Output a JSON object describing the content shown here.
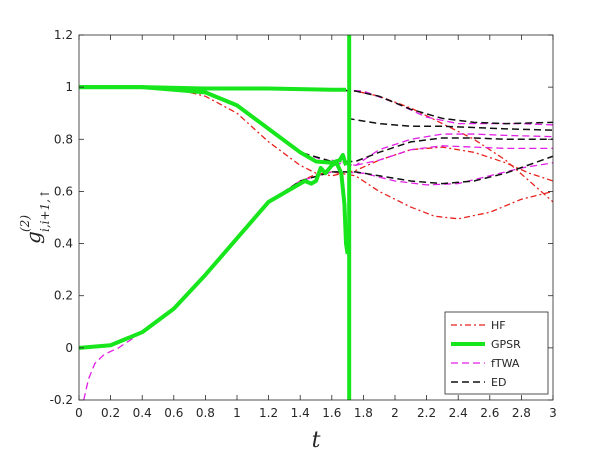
{
  "chart_data": {
    "type": "line",
    "title": "",
    "xlabel": "t",
    "ylabel_main": "g",
    "ylabel_sup": "(2)",
    "ylabel_sub": "i,i+1,↑",
    "xlim": [
      0,
      3
    ],
    "ylim": [
      -0.2,
      1.2
    ],
    "xticks": [
      0,
      0.2,
      0.4,
      0.6,
      0.8,
      1,
      1.2,
      1.4,
      1.6,
      1.8,
      2,
      2.2,
      2.4,
      2.6,
      2.8,
      3
    ],
    "xtick_labels": [
      "0",
      "0.2",
      "0.4",
      "0.6",
      "0.8",
      "1",
      "1.2",
      "1.4",
      "1.6",
      "1.8",
      "2",
      "2.2",
      "2.4",
      "2.6",
      "2.8",
      "3"
    ],
    "yticks": [
      -0.2,
      0,
      0.2,
      0.4,
      0.6,
      0.8,
      1,
      1.2
    ],
    "ytick_labels": [
      "-0.2",
      "0",
      "0.2",
      "0.4",
      "0.6",
      "0.8",
      "1",
      "1.2"
    ],
    "grid": false,
    "legend_position": "bottom-right",
    "legend": [
      {
        "name": "HF",
        "color": "#e8231f",
        "dash": "6,3,2,3",
        "width": 1.3
      },
      {
        "name": "GPSR",
        "color": "#16e61b",
        "dash": "",
        "width": 4
      },
      {
        "name": "fTWA",
        "color": "#e21fe6",
        "dash": "7,4",
        "width": 1.3
      },
      {
        "name": "ED",
        "color": "#111111",
        "dash": "7,4",
        "width": 1.5
      }
    ],
    "series": [
      {
        "style": "HF",
        "points": [
          [
            0,
            1
          ],
          [
            0.4,
            1
          ],
          [
            0.8,
            0.99
          ],
          [
            1.2,
            0.993
          ],
          [
            1.6,
            0.99
          ],
          [
            1.75,
            0.985
          ],
          [
            1.9,
            0.965
          ],
          [
            2.1,
            0.92
          ],
          [
            2.3,
            0.86
          ],
          [
            2.5,
            0.8
          ],
          [
            2.7,
            0.72
          ],
          [
            2.85,
            0.64
          ],
          [
            3,
            0.56
          ]
        ]
      },
      {
        "style": "HF",
        "points": [
          [
            0,
            1
          ],
          [
            0.4,
            1
          ],
          [
            0.6,
            0.995
          ],
          [
            0.8,
            0.965
          ],
          [
            1,
            0.9
          ],
          [
            1.2,
            0.79
          ],
          [
            1.4,
            0.7
          ],
          [
            1.5,
            0.67
          ],
          [
            1.6,
            0.66
          ],
          [
            1.75,
            0.68
          ],
          [
            1.9,
            0.72
          ],
          [
            2.1,
            0.76
          ],
          [
            2.3,
            0.77
          ],
          [
            2.5,
            0.75
          ],
          [
            2.7,
            0.71
          ],
          [
            2.85,
            0.67
          ],
          [
            3,
            0.64
          ]
        ]
      },
      {
        "style": "HF",
        "points": [
          [
            0,
            0
          ],
          [
            0.2,
            0.01
          ],
          [
            0.4,
            0.06
          ],
          [
            0.6,
            0.15
          ],
          [
            0.8,
            0.28
          ],
          [
            1,
            0.42
          ],
          [
            1.2,
            0.56
          ],
          [
            1.4,
            0.64
          ],
          [
            1.5,
            0.665
          ],
          [
            1.6,
            0.675
          ],
          [
            1.75,
            0.66
          ],
          [
            1.9,
            0.6
          ],
          [
            2.1,
            0.54
          ],
          [
            2.25,
            0.505
          ],
          [
            2.4,
            0.495
          ],
          [
            2.6,
            0.52
          ],
          [
            2.8,
            0.57
          ],
          [
            3,
            0.6
          ]
        ]
      },
      {
        "style": "fTWA",
        "points": [
          [
            0,
            1
          ],
          [
            0.4,
            1
          ],
          [
            0.8,
            0.995
          ],
          [
            1.2,
            0.995
          ],
          [
            1.6,
            0.99
          ],
          [
            1.8,
            0.985
          ],
          [
            2,
            0.94
          ],
          [
            2.2,
            0.885
          ],
          [
            2.4,
            0.86
          ],
          [
            2.6,
            0.86
          ],
          [
            2.8,
            0.86
          ],
          [
            3,
            0.855
          ]
        ]
      },
      {
        "style": "fTWA",
        "points": [
          [
            0,
            1
          ],
          [
            0.4,
            1
          ],
          [
            0.8,
            0.98
          ],
          [
            1,
            0.93
          ],
          [
            1.2,
            0.84
          ],
          [
            1.4,
            0.75
          ],
          [
            1.6,
            0.71
          ],
          [
            1.75,
            0.7
          ],
          [
            1.9,
            0.72
          ],
          [
            2.1,
            0.76
          ],
          [
            2.3,
            0.775
          ],
          [
            2.5,
            0.77
          ],
          [
            2.7,
            0.765
          ],
          [
            3,
            0.765
          ]
        ]
      },
      {
        "style": "fTWA",
        "points": [
          [
            0.03,
            -0.2
          ],
          [
            0.06,
            -0.12
          ],
          [
            0.1,
            -0.06
          ],
          [
            0.16,
            -0.025
          ],
          [
            0.25,
            0
          ],
          [
            0.4,
            0.06
          ],
          [
            0.6,
            0.15
          ],
          [
            0.8,
            0.28
          ],
          [
            1,
            0.42
          ],
          [
            1.2,
            0.56
          ],
          [
            1.4,
            0.64
          ],
          [
            1.6,
            0.675
          ],
          [
            1.8,
            0.67
          ],
          [
            2,
            0.64
          ],
          [
            2.2,
            0.625
          ],
          [
            2.4,
            0.63
          ],
          [
            2.6,
            0.66
          ],
          [
            2.8,
            0.69
          ],
          [
            3,
            0.71
          ]
        ]
      },
      {
        "style": "fTWA",
        "points": [
          [
            1.6,
            0.72
          ],
          [
            1.75,
            0.7
          ],
          [
            1.9,
            0.76
          ],
          [
            2.1,
            0.8
          ],
          [
            2.3,
            0.82
          ],
          [
            2.5,
            0.82
          ],
          [
            2.7,
            0.815
          ],
          [
            3,
            0.81
          ]
        ]
      },
      {
        "style": "ED",
        "points": [
          [
            0,
            1
          ],
          [
            0.4,
            1
          ],
          [
            0.8,
            0.995
          ],
          [
            1.2,
            0.995
          ],
          [
            1.6,
            0.99
          ],
          [
            1.75,
            0.985
          ],
          [
            1.9,
            0.965
          ],
          [
            2.1,
            0.915
          ],
          [
            2.3,
            0.88
          ],
          [
            2.5,
            0.865
          ],
          [
            2.7,
            0.86
          ],
          [
            3,
            0.865
          ]
        ]
      },
      {
        "style": "ED",
        "points": [
          [
            0,
            1
          ],
          [
            0.4,
            1
          ],
          [
            0.8,
            0.98
          ],
          [
            1,
            0.93
          ],
          [
            1.2,
            0.84
          ],
          [
            1.4,
            0.75
          ],
          [
            1.6,
            0.715
          ],
          [
            1.75,
            0.715
          ],
          [
            1.9,
            0.75
          ],
          [
            2.1,
            0.79
          ],
          [
            2.3,
            0.805
          ],
          [
            2.5,
            0.805
          ],
          [
            2.7,
            0.8
          ],
          [
            3,
            0.8
          ]
        ]
      },
      {
        "style": "ED",
        "points": [
          [
            0,
            0
          ],
          [
            0.2,
            0.01
          ],
          [
            0.4,
            0.06
          ],
          [
            0.6,
            0.15
          ],
          [
            0.8,
            0.28
          ],
          [
            1,
            0.42
          ],
          [
            1.2,
            0.56
          ],
          [
            1.4,
            0.64
          ],
          [
            1.6,
            0.675
          ],
          [
            1.75,
            0.675
          ],
          [
            1.9,
            0.66
          ],
          [
            2.1,
            0.64
          ],
          [
            2.3,
            0.63
          ],
          [
            2.5,
            0.64
          ],
          [
            2.7,
            0.67
          ],
          [
            3,
            0.735
          ]
        ]
      },
      {
        "style": "ED",
        "points": [
          [
            1.7,
            0.88
          ],
          [
            1.9,
            0.86
          ],
          [
            2.1,
            0.85
          ],
          [
            2.3,
            0.85
          ],
          [
            2.5,
            0.845
          ],
          [
            2.7,
            0.84
          ],
          [
            3,
            0.835
          ]
        ]
      },
      {
        "style": "GPSR",
        "points": [
          [
            0,
            1
          ],
          [
            0.4,
            1
          ],
          [
            0.8,
            0.995
          ],
          [
            1.2,
            0.995
          ],
          [
            1.6,
            0.99
          ],
          [
            1.69,
            0.99
          ]
        ]
      },
      {
        "style": "GPSR",
        "points": [
          [
            0,
            1
          ],
          [
            0.4,
            1
          ],
          [
            0.8,
            0.98
          ],
          [
            1,
            0.93
          ],
          [
            1.2,
            0.84
          ],
          [
            1.4,
            0.75
          ],
          [
            1.5,
            0.715
          ],
          [
            1.6,
            0.71
          ],
          [
            1.65,
            0.72
          ],
          [
            1.67,
            0.74
          ],
          [
            1.69,
            0.7
          ]
        ]
      },
      {
        "style": "GPSR",
        "points": [
          [
            0,
            0
          ],
          [
            0.2,
            0.01
          ],
          [
            0.4,
            0.06
          ],
          [
            0.6,
            0.15
          ],
          [
            0.8,
            0.28
          ],
          [
            1,
            0.42
          ],
          [
            1.2,
            0.56
          ],
          [
            1.4,
            0.63
          ],
          [
            1.43,
            0.64
          ],
          [
            1.47,
            0.63
          ],
          [
            1.5,
            0.64
          ],
          [
            1.53,
            0.69
          ],
          [
            1.56,
            0.67
          ],
          [
            1.6,
            0.7
          ],
          [
            1.63,
            0.71
          ],
          [
            1.66,
            0.67
          ],
          [
            1.68,
            0.55
          ],
          [
            1.69,
            0.4
          ],
          [
            1.7,
            0.36
          ]
        ]
      },
      {
        "style": "GPSR",
        "points": [
          [
            1.71,
            -0.2
          ],
          [
            1.71,
            1.2
          ]
        ]
      }
    ]
  }
}
